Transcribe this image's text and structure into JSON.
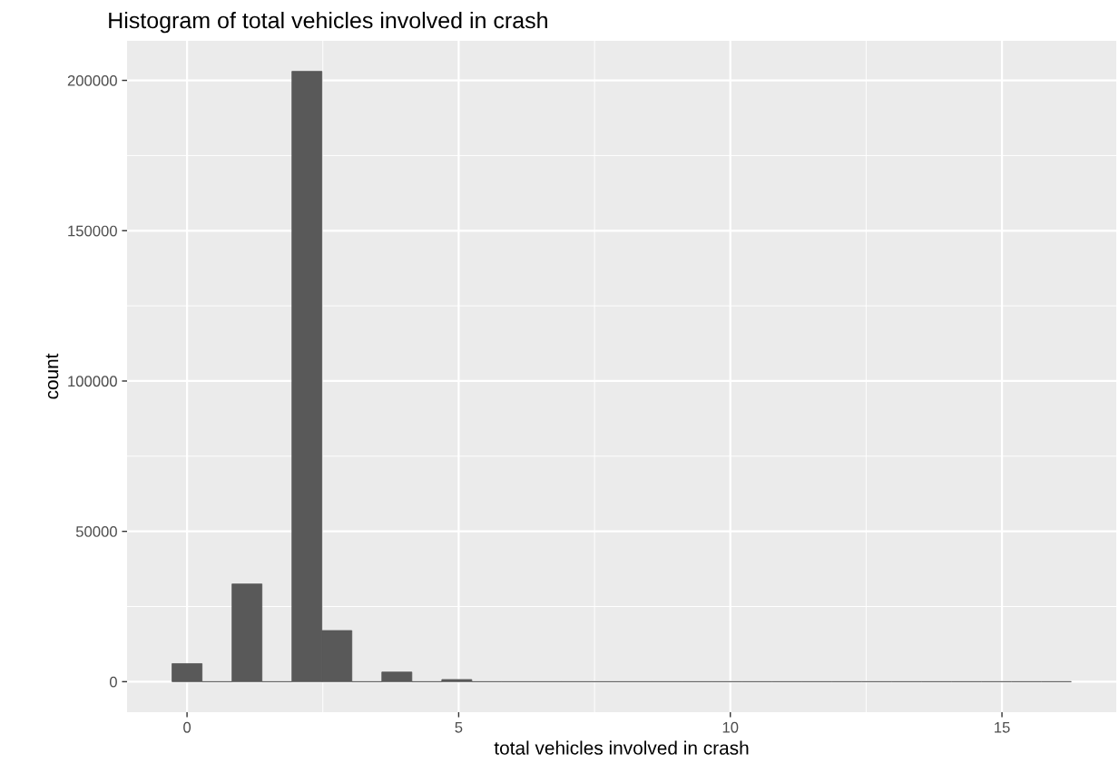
{
  "chart_data": {
    "type": "histogram",
    "title": "Histogram of total vehicles involved in crash",
    "xlabel": "total vehicles involved in crash",
    "ylabel": "count",
    "color": "#595959",
    "bins": [
      -0.276,
      0.276,
      0.828,
      1.379,
      1.931,
      2.483,
      3.034,
      3.586,
      4.138,
      4.69,
      5.241,
      5.793,
      6.345,
      6.897,
      7.448,
      8.0,
      8.552,
      9.103,
      9.655,
      10.207,
      10.759,
      11.31,
      11.862,
      12.414,
      12.966,
      13.517,
      14.069,
      14.621,
      15.172,
      15.724,
      16.276
    ],
    "values": [
      6000,
      0,
      32500,
      0,
      203000,
      17000,
      0,
      3200,
      0,
      700,
      0,
      0,
      0,
      0,
      0,
      0,
      0,
      0,
      0,
      0,
      0,
      0,
      0,
      0,
      0,
      0,
      0,
      0,
      0,
      0
    ],
    "xlim": [
      -1.104,
      17.104
    ],
    "ylim": [
      -10150,
      213150
    ],
    "xticks": [
      0,
      5,
      10,
      15
    ],
    "yticks": [
      0,
      50000,
      100000,
      150000,
      200000
    ],
    "grid": true
  }
}
